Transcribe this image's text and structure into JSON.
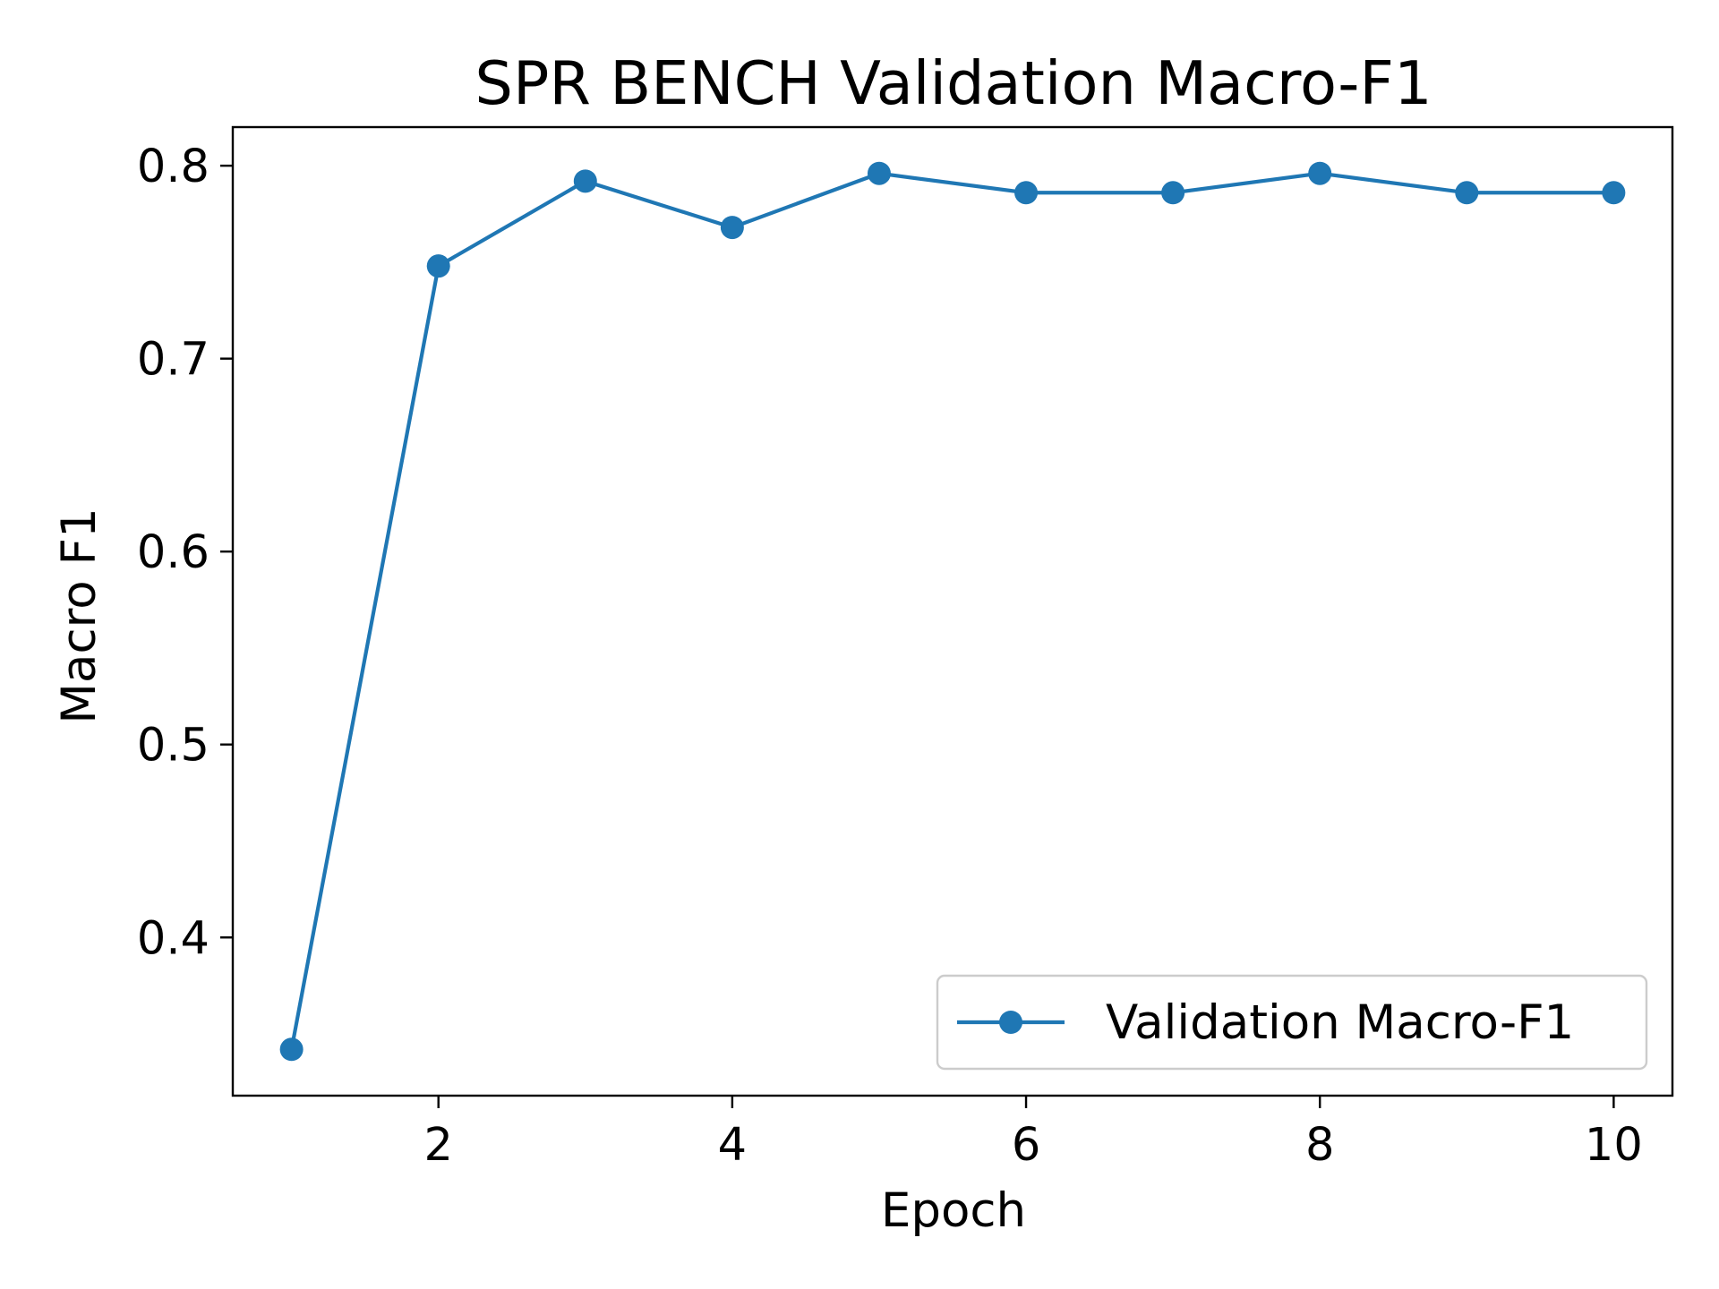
{
  "chart_data": {
    "type": "line",
    "title": "SPR BENCH Validation Macro-F1",
    "xlabel": "Epoch",
    "ylabel": "Macro F1",
    "xlim": [
      0.6,
      10.4
    ],
    "ylim": [
      0.318,
      0.82
    ],
    "x_ticks": [
      2,
      4,
      6,
      8,
      10
    ],
    "x_tick_labels": [
      "2",
      "4",
      "6",
      "8",
      "10"
    ],
    "y_ticks": [
      0.4,
      0.5,
      0.6,
      0.7,
      0.8
    ],
    "y_tick_labels": [
      "0.4",
      "0.5",
      "0.6",
      "0.7",
      "0.8"
    ],
    "grid": false,
    "legend_position": "lower-right",
    "series": [
      {
        "name": "Validation Macro-F1",
        "color": "#1f77b4",
        "marker": "circle",
        "x": [
          1,
          2,
          3,
          4,
          5,
          6,
          7,
          8,
          9,
          10
        ],
        "values": [
          0.342,
          0.748,
          0.792,
          0.768,
          0.796,
          0.786,
          0.786,
          0.796,
          0.786,
          0.786
        ]
      }
    ]
  }
}
